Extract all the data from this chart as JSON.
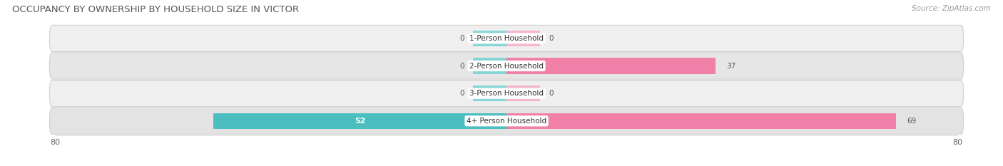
{
  "title": "OCCUPANCY BY OWNERSHIP BY HOUSEHOLD SIZE IN VICTOR",
  "source": "Source: ZipAtlas.com",
  "categories": [
    "1-Person Household",
    "2-Person Household",
    "3-Person Household",
    "4+ Person Household"
  ],
  "owner_values": [
    0,
    0,
    0,
    52
  ],
  "renter_values": [
    0,
    37,
    0,
    69
  ],
  "xlim": 80,
  "owner_color": "#4bbfbf",
  "renter_color": "#f080a8",
  "owner_stub_color": "#5ecece",
  "renter_stub_color": "#f8a0c0",
  "row_bg_colors": [
    "#efefef",
    "#e6e6e6",
    "#efefef",
    "#e3e3e3"
  ],
  "row_border_color": "#d0d0d0",
  "label_color": "#555555",
  "title_fontsize": 9.5,
  "source_fontsize": 7.5,
  "tick_fontsize": 8,
  "legend_fontsize": 8,
  "bar_height": 0.58,
  "stub_size": 6,
  "figsize": [
    14.06,
    2.33
  ],
  "dpi": 100
}
